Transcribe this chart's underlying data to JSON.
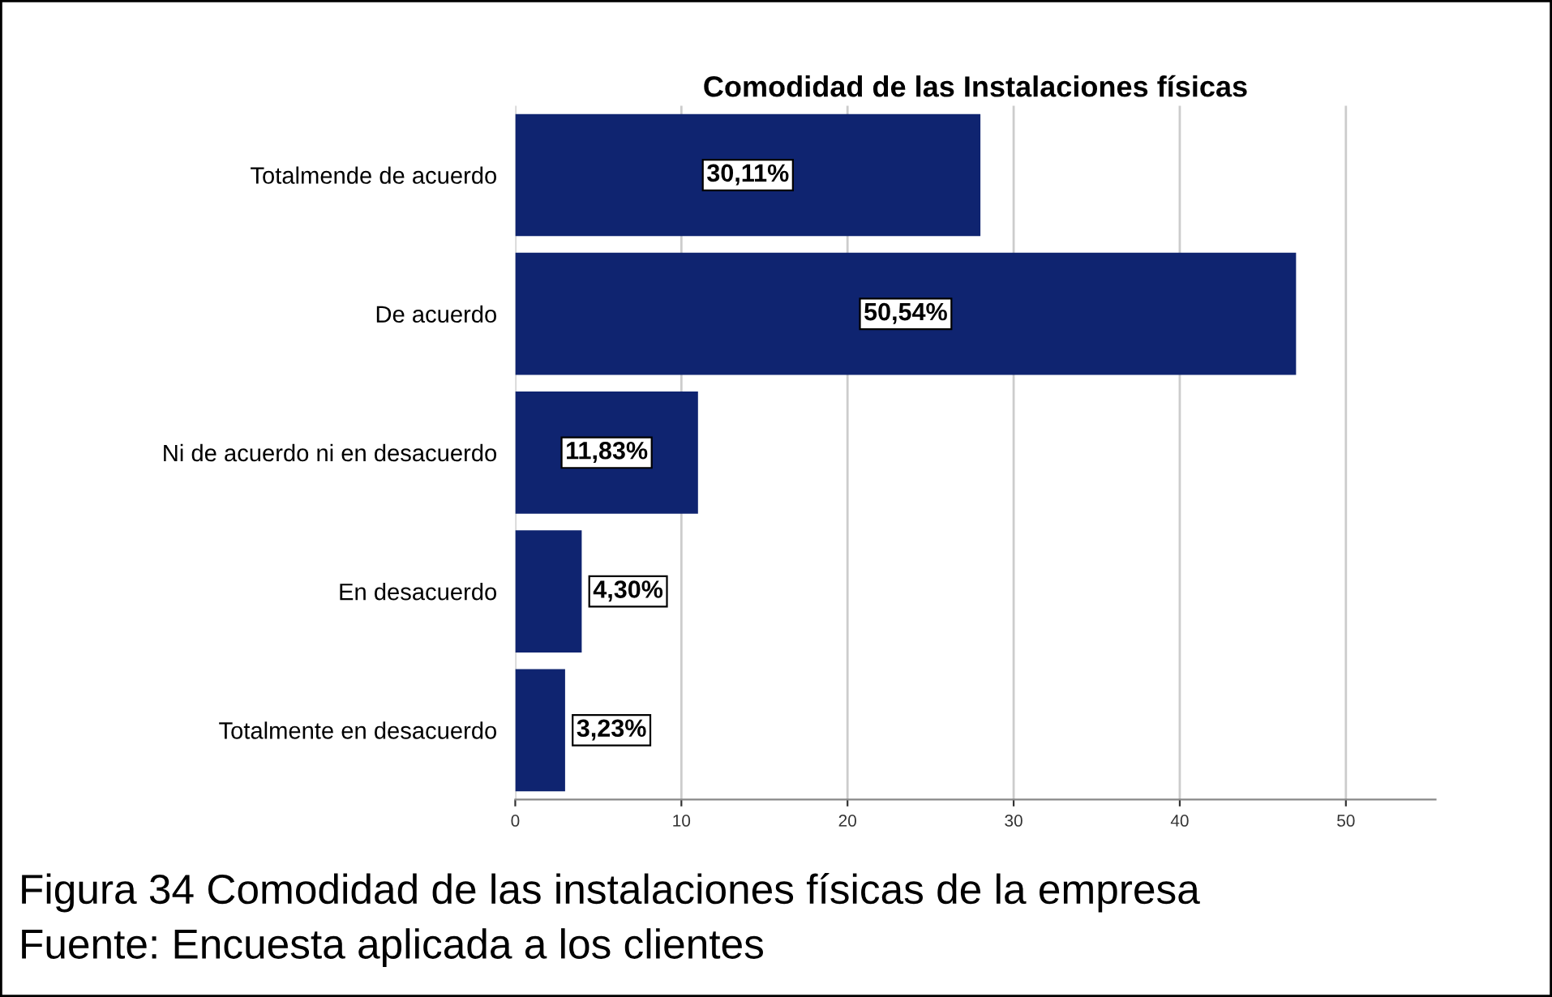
{
  "chart_data": {
    "type": "bar",
    "orientation": "horizontal",
    "title": "Comodidad de las Instalaciones físicas",
    "categories": [
      "Totalmende de acuerdo",
      "De acuerdo",
      "Ni de acuerdo ni en desacuerdo",
      "En desacuerdo",
      "Totalmente en desacuerdo"
    ],
    "values": [
      28,
      47,
      11,
      4,
      3
    ],
    "color": "#0f2470",
    "xlim": [
      0,
      55.4
    ],
    "xticks": [
      0,
      10,
      20,
      30,
      40,
      50
    ],
    "grid": "x",
    "annotations": [
      {
        "text": "30,11%",
        "x": 14,
        "y": "Totalmende de acuerdo"
      },
      {
        "text": "50,54%",
        "x": 23.5,
        "y": "De acuerdo"
      },
      {
        "text": "11,83%",
        "x": 5.5,
        "y": "Ni de acuerdo ni en desacuerdo"
      },
      {
        "text": "4,30%",
        "x": 4,
        "y": "En desacuerdo"
      },
      {
        "text": "3,23%",
        "x": 3,
        "y": "Totalmente en desacuerdo"
      },
      "Figura 34 Comodidad de las instalaciones físicas de la empresa",
      "Fuente: Encuesta aplicada a los clientes"
    ]
  }
}
